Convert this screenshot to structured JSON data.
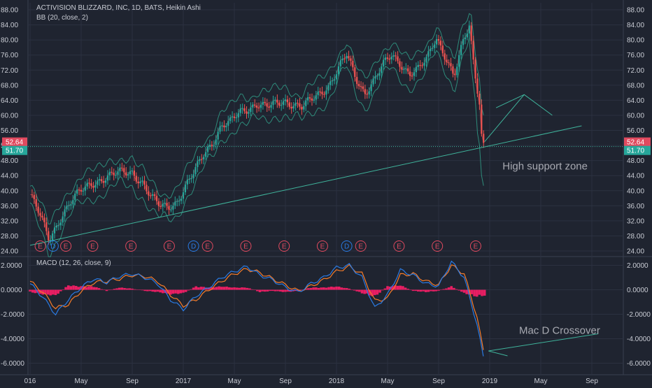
{
  "header": {
    "title": "ACTIVISION BLIZZARD, INC, 1D, BATS, Heikin Ashi",
    "indicator": "BB (20, close, 2)",
    "macd_label": "MACD (12, 26, close, 9)"
  },
  "colors": {
    "background": "#1f2430",
    "grid": "#2b3140",
    "up": "#26a69a",
    "down": "#ef5350",
    "bands": "#2e8b7a",
    "annotation": "#3fb39b",
    "macd_line": "#2a7be4",
    "signal_line": "#f57c2a",
    "histogram": "#e91e63",
    "earnings_event": "#e04a5f",
    "dividend_event": "#2a7be4",
    "text": "#c9ccd4",
    "annotation_text": "#a8aab2"
  },
  "price_badges": {
    "close": {
      "value": "52.64",
      "color": "#e04a5f"
    },
    "previous": {
      "value": "51.70",
      "color": "#26a69a"
    }
  },
  "annotations": {
    "support": "High support zone",
    "crossover": "Mac D Crossover"
  },
  "chart_data": [
    {
      "type": "candlestick",
      "title": "ACTIVISION BLIZZARD, INC, 1D, BATS, Heikin Ashi",
      "x_ticks": [
        "016",
        "May",
        "Sep",
        "2017",
        "May",
        "Sep",
        "2018",
        "May",
        "Sep",
        "2019",
        "May",
        "Sep"
      ],
      "x_tick_months": [
        0,
        4,
        8,
        12,
        16,
        20,
        24,
        28,
        32,
        36,
        40,
        44
      ],
      "y_ticks": [
        "24.00",
        "28.00",
        "32.00",
        "36.00",
        "40.00",
        "44.00",
        "48.00",
        "52.00",
        "56.00",
        "60.00",
        "64.00",
        "68.00",
        "72.00",
        "76.00",
        "80.00",
        "84.00",
        "88.00"
      ],
      "ylim": [
        23,
        90
      ],
      "grid": true,
      "series": [
        {
          "name": "ACTIVISION BLIZZARD, INC",
          "x_months": [
            0,
            0.7,
            1.5,
            2.4,
            3.2,
            4.0,
            4.8,
            5.6,
            6.4,
            7.2,
            8.0,
            8.8,
            9.5,
            10.2,
            10.8,
            11.5,
            12.2,
            12.9,
            13.6,
            14.3,
            15.0,
            15.7,
            16.4,
            17.1,
            17.8,
            18.5,
            19.2,
            19.9,
            20.6,
            21.3,
            22.0,
            22.7,
            23.4,
            24.1,
            24.8,
            25.5,
            26.2,
            26.9,
            27.6,
            28.3,
            29.0,
            29.7,
            30.4,
            31.1,
            31.8,
            32.5,
            33.2,
            33.9,
            34.4,
            34.8,
            35.2,
            35.4,
            35.6
          ],
          "y": [
            39,
            34,
            27,
            33,
            37,
            40,
            42,
            43,
            44,
            45,
            45,
            42,
            38,
            36,
            36,
            37,
            41,
            45,
            50,
            53,
            57,
            58,
            61,
            62,
            63,
            62,
            63,
            64,
            63,
            62,
            64,
            66,
            68,
            72,
            76,
            70,
            66,
            69,
            73,
            76,
            74,
            71,
            72,
            75,
            81,
            76,
            70,
            79,
            84,
            72,
            64,
            53,
            51.7
          ]
        }
      ],
      "bollinger_bands": {
        "name": "BB (20, close, 2)",
        "upper_offset": 3.0,
        "lower_offset": -3.0
      },
      "events": [
        {
          "label": "E",
          "x_month": 0.8
        },
        {
          "label": "D",
          "x_month": 1.8
        },
        {
          "label": "E",
          "x_month": 2.8
        },
        {
          "label": "E",
          "x_month": 4.9
        },
        {
          "label": "E",
          "x_month": 7.9
        },
        {
          "label": "E",
          "x_month": 10.9
        },
        {
          "label": "D",
          "x_month": 12.8
        },
        {
          "label": "E",
          "x_month": 13.9
        },
        {
          "label": "E",
          "x_month": 16.9
        },
        {
          "label": "E",
          "x_month": 19.9
        },
        {
          "label": "E",
          "x_month": 22.9
        },
        {
          "label": "D",
          "x_month": 24.8
        },
        {
          "label": "E",
          "x_month": 25.9
        },
        {
          "label": "E",
          "x_month": 28.9
        },
        {
          "label": "E",
          "x_month": 31.9
        },
        {
          "label": "E",
          "x_month": 34.9
        }
      ],
      "annotation_lines": {
        "support_trendline": [
          [
            0,
            25.5
          ],
          [
            43.2,
            57.2
          ]
        ],
        "projection_path": [
          [
            35.6,
            53
          ],
          [
            38.7,
            65.5
          ],
          [
            40.9,
            60
          ]
        ],
        "projection_tail": [
          [
            36.5,
            62
          ],
          [
            38.7,
            65.5
          ]
        ],
        "current_price_line": 51.7
      },
      "annotation_text": [
        {
          "text": "High support zone",
          "x_month": 37,
          "y": 46.5
        }
      ],
      "current_price": {
        "value": 52.64,
        "previous": 51.7
      }
    },
    {
      "type": "line",
      "title": "MACD (12, 26, close, 9)",
      "y_ticks": [
        "2.0000",
        "0.0000",
        "-2.0000",
        "-4.0000",
        "-6.0000"
      ],
      "ylim": [
        -6.5,
        2.6
      ],
      "grid": true,
      "x": [
        0,
        1,
        2,
        3,
        4,
        5,
        6,
        7,
        8,
        9,
        10,
        11,
        12,
        13,
        14,
        15,
        16,
        17,
        18,
        19,
        20,
        21,
        22,
        23,
        24,
        25,
        26,
        27,
        28,
        29,
        30,
        31,
        32,
        33,
        34,
        35,
        35.6
      ],
      "series": [
        {
          "name": "MACD",
          "values": [
            0.5,
            -0.6,
            -2.0,
            -0.8,
            0.2,
            0.9,
            0.6,
            1.1,
            1.3,
            1.0,
            0.5,
            -0.8,
            -1.6,
            -0.5,
            0.2,
            1.0,
            1.5,
            1.9,
            1.2,
            0.8,
            0.2,
            -0.2,
            0.5,
            1.0,
            1.8,
            2.0,
            1.0,
            -1.5,
            -0.4,
            1.6,
            1.2,
            0.5,
            0.3,
            2.3,
            1.0,
            -2.8,
            -6.0
          ]
        },
        {
          "name": "Signal",
          "values": [
            0.7,
            -0.2,
            -1.5,
            -1.2,
            -0.1,
            0.6,
            0.7,
            0.9,
            1.2,
            1.1,
            0.7,
            -0.4,
            -1.3,
            -0.8,
            0.0,
            0.7,
            1.3,
            1.7,
            1.4,
            0.9,
            0.4,
            -0.1,
            0.3,
            0.8,
            1.5,
            1.9,
            1.3,
            -0.9,
            -0.7,
            1.2,
            1.3,
            0.7,
            0.4,
            2.0,
            1.3,
            -2.2,
            -5.5
          ]
        },
        {
          "name": "Histogram",
          "values": [
            -0.2,
            -0.4,
            -0.5,
            0.4,
            0.3,
            0.3,
            -0.1,
            0.2,
            0.1,
            -0.1,
            -0.2,
            -0.4,
            -0.3,
            0.3,
            0.2,
            0.3,
            0.2,
            0.2,
            -0.2,
            -0.1,
            -0.2,
            -0.1,
            0.2,
            0.2,
            0.3,
            0.1,
            -0.3,
            -0.6,
            0.3,
            0.4,
            -0.1,
            -0.2,
            -0.1,
            0.3,
            -0.3,
            -0.6,
            -0.5
          ]
        }
      ],
      "annotation_lines": {
        "arrow": [
          [
            44.5,
            -3.6
          ],
          [
            35.9,
            -5.0
          ],
          [
            37.4,
            -5.4
          ]
        ]
      },
      "annotation_text": [
        {
          "text": "Mac D Crossover",
          "x_month": 38.3,
          "y": -3.3
        }
      ]
    }
  ]
}
